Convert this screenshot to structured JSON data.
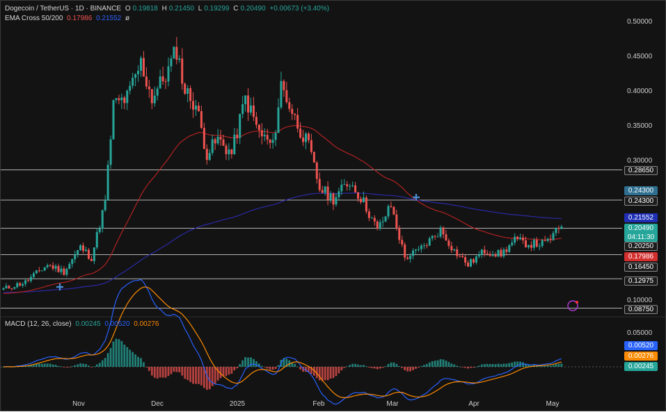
{
  "legend": {
    "symbol": "Dogecoin / TetherUS · 1D · BINANCE",
    "o_label": "O",
    "o": "0.19818",
    "h_label": "H",
    "h": "0.21450",
    "l_label": "L",
    "l": "0.19299",
    "c_label": "C",
    "c": "0.20490",
    "change": "+0.00673 (+3.40%)",
    "ema_label": "EMA Cross 50/200",
    "ema50": "0.17986",
    "ema200": "0.21552",
    "ema_suffix": "ø"
  },
  "macd_legend": {
    "label": "MACD (12, 26, close)",
    "hist": "0.00245",
    "macd": "0.00520",
    "signal": "0.00276"
  },
  "colors": {
    "background": "#131313",
    "up": "#26a69a",
    "down": "#ef5350",
    "ema50": "#b22222",
    "ema200": "#2a2aa8",
    "macd": "#2962ff",
    "signal": "#ff8c00",
    "hline": "#cfcfcf"
  },
  "chart_data": {
    "type": "candlestick",
    "y_ticks": [
      "0.50000",
      "0.45000",
      "0.40000",
      "0.35000",
      "0.30000",
      "0.10000"
    ],
    "ylim": [
      0.08,
      0.51
    ],
    "x_ticks": [
      "Nov",
      "Dec",
      "2025",
      "Feb",
      "Mar",
      "Apr",
      "May"
    ],
    "horizontal_levels": [
      "0.28650",
      "0.24300",
      "0.20250",
      "0.16450",
      "0.12975",
      "0.08750"
    ],
    "last_price": "0.20490",
    "countdown": "04:11:30",
    "ema50_value": "0.17986",
    "ema200_value": "0.21552",
    "anchors": [
      {
        "d": 0,
        "p": 0.115
      },
      {
        "d": 8,
        "p": 0.125
      },
      {
        "d": 16,
        "p": 0.15
      },
      {
        "d": 22,
        "p": 0.14
      },
      {
        "d": 28,
        "p": 0.175
      },
      {
        "d": 32,
        "p": 0.16
      },
      {
        "d": 37,
        "p": 0.24
      },
      {
        "d": 40,
        "p": 0.38
      },
      {
        "d": 45,
        "p": 0.39
      },
      {
        "d": 50,
        "p": 0.44
      },
      {
        "d": 54,
        "p": 0.39
      },
      {
        "d": 60,
        "p": 0.43
      },
      {
        "d": 63,
        "p": 0.46
      },
      {
        "d": 66,
        "p": 0.4
      },
      {
        "d": 70,
        "p": 0.38
      },
      {
        "d": 74,
        "p": 0.31
      },
      {
        "d": 78,
        "p": 0.33
      },
      {
        "d": 83,
        "p": 0.31
      },
      {
        "d": 88,
        "p": 0.39
      },
      {
        "d": 93,
        "p": 0.34
      },
      {
        "d": 98,
        "p": 0.32
      },
      {
        "d": 101,
        "p": 0.41
      },
      {
        "d": 106,
        "p": 0.36
      },
      {
        "d": 111,
        "p": 0.32
      },
      {
        "d": 115,
        "p": 0.26
      },
      {
        "d": 120,
        "p": 0.245
      },
      {
        "d": 126,
        "p": 0.27
      },
      {
        "d": 131,
        "p": 0.24
      },
      {
        "d": 136,
        "p": 0.2
      },
      {
        "d": 141,
        "p": 0.235
      },
      {
        "d": 146,
        "p": 0.16
      },
      {
        "d": 151,
        "p": 0.17
      },
      {
        "d": 159,
        "p": 0.2
      },
      {
        "d": 164,
        "p": 0.17
      },
      {
        "d": 169,
        "p": 0.15
      },
      {
        "d": 175,
        "p": 0.17
      },
      {
        "d": 181,
        "p": 0.165
      },
      {
        "d": 186,
        "p": 0.185
      },
      {
        "d": 191,
        "p": 0.18
      },
      {
        "d": 197,
        "p": 0.18
      },
      {
        "d": 203,
        "p": 0.2049
      }
    ],
    "macd": {
      "y_ticks": [
        "0.05000"
      ],
      "x_label": "",
      "hist_value": "0.00245",
      "macd_value": "0.00520",
      "signal_value": "0.00276"
    }
  }
}
